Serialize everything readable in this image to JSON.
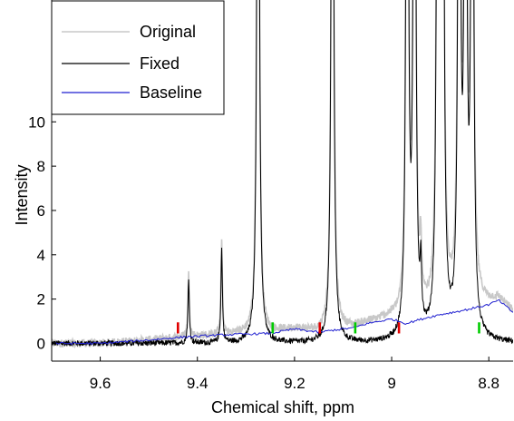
{
  "chart_data": {
    "type": "line",
    "xlabel": "Chemical shift, ppm",
    "ylabel": "Intensity",
    "x_reversed": true,
    "xlim": [
      9.7,
      8.75
    ],
    "ylim": [
      -0.8,
      15.5
    ],
    "xticks": [
      9.6,
      9.4,
      9.2,
      9,
      8.8
    ],
    "xtick_labels": [
      "9.6",
      "9.4",
      "9.2",
      "9",
      "8.8"
    ],
    "yticks": [
      0,
      2,
      4,
      6,
      8,
      10
    ],
    "ytick_labels": [
      "0",
      "2",
      "4",
      "6",
      "8",
      "10"
    ],
    "legend": {
      "position": "top-left",
      "entries": [
        {
          "label": "Original",
          "color": "#c8c8c8"
        },
        {
          "label": "Fixed",
          "color": "#000000"
        },
        {
          "label": "Baseline",
          "color": "#1f1fd0"
        }
      ]
    },
    "peaks": [
      {
        "x": 9.418,
        "height": 2.8
      },
      {
        "x": 9.35,
        "height": 4.2
      },
      {
        "x": 9.275,
        "height": 40
      },
      {
        "x": 9.122,
        "height": 40
      },
      {
        "x": 8.968,
        "height": 40
      },
      {
        "x": 8.953,
        "height": 40
      },
      {
        "x": 8.94,
        "height": 2.5
      },
      {
        "x": 8.905,
        "height": 40
      },
      {
        "x": 8.895,
        "height": 40
      },
      {
        "x": 8.861,
        "height": 40
      },
      {
        "x": 8.848,
        "height": 40
      },
      {
        "x": 8.834,
        "height": 40
      }
    ],
    "baseline": {
      "x": [
        9.7,
        9.6,
        9.5,
        9.45,
        9.42,
        9.35,
        9.3,
        9.25,
        9.2,
        9.15,
        9.12,
        9.08,
        9.05,
        9.0,
        8.97,
        8.93,
        8.9,
        8.85,
        8.8,
        8.78,
        8.75
      ],
      "y": [
        0.0,
        0.0,
        0.15,
        0.25,
        0.3,
        0.38,
        0.42,
        0.45,
        0.65,
        0.5,
        0.6,
        0.7,
        0.9,
        1.1,
        0.9,
        1.15,
        1.3,
        1.5,
        1.75,
        1.95,
        1.4
      ]
    },
    "markers": [
      {
        "x": 9.44,
        "color": "#e00000"
      },
      {
        "x": 9.245,
        "color": "#00cc00"
      },
      {
        "x": 9.148,
        "color": "#e00000"
      },
      {
        "x": 9.075,
        "color": "#00cc00"
      },
      {
        "x": 8.985,
        "color": "#e00000"
      },
      {
        "x": 8.82,
        "color": "#00cc00"
      }
    ]
  }
}
